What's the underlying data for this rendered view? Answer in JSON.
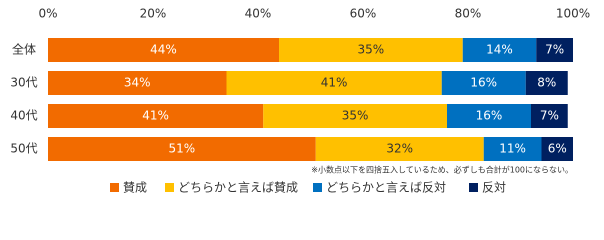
{
  "chart_data": {
    "type": "stacked-barh",
    "categories": [
      "全体",
      "30代",
      "40代",
      "50代"
    ],
    "series": [
      {
        "name": "賛成",
        "color": "#f26b00",
        "label_color": "#ffffff",
        "values": [
          44,
          34,
          41,
          51
        ],
        "value_labels": [
          "44%",
          "34%",
          "41%",
          "51%"
        ]
      },
      {
        "name": "どちらかと言えば賛成",
        "color": "#ffc000",
        "label_color": "#333333",
        "values": [
          35,
          41,
          35,
          32
        ],
        "value_labels": [
          "35%",
          "41%",
          "35%",
          "32%"
        ]
      },
      {
        "name": "どちらかと言えば反対",
        "color": "#0070c0",
        "label_color": "#ffffff",
        "values": [
          14,
          16,
          16,
          11
        ],
        "value_labels": [
          "14%",
          "16%",
          "16%",
          "11%"
        ]
      },
      {
        "name": "反対",
        "color": "#002060",
        "label_color": "#ffffff",
        "values": [
          7,
          8,
          7,
          6
        ],
        "value_labels": [
          "7%",
          "8%",
          "7%",
          "6%"
        ]
      }
    ],
    "xlim": [
      0,
      100
    ],
    "xticks": [
      {
        "value": 0,
        "label": "0%"
      },
      {
        "value": 20,
        "label": "20%"
      },
      {
        "value": 40,
        "label": "40%"
      },
      {
        "value": 60,
        "label": "60%"
      },
      {
        "value": 80,
        "label": "80%"
      },
      {
        "value": 100,
        "label": "100%"
      }
    ],
    "note": "※小数点以下を四捨五入しているため、必ずしも合計が100にならない。",
    "grid": false
  }
}
